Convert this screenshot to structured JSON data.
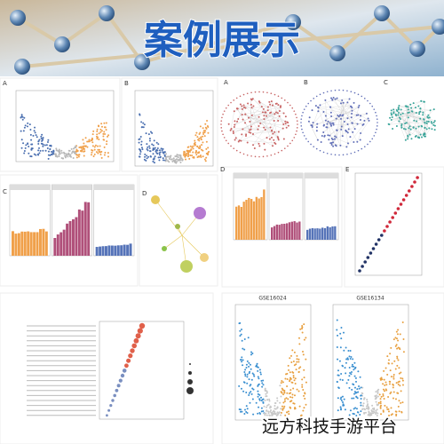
{
  "header": {
    "title": "案例展示"
  },
  "panels": [
    {
      "label": "A"
    },
    {
      "label": "B"
    },
    {
      "label": "A"
    },
    {
      "label": "B"
    },
    {
      "label": "C"
    },
    {
      "label": "C"
    },
    {
      "label": "D"
    },
    {
      "label": "D"
    },
    {
      "label": "E"
    }
  ],
  "datasets": [
    "GSE16024",
    "GSE16134"
  ],
  "watermark": "远方科技手游平台"
}
